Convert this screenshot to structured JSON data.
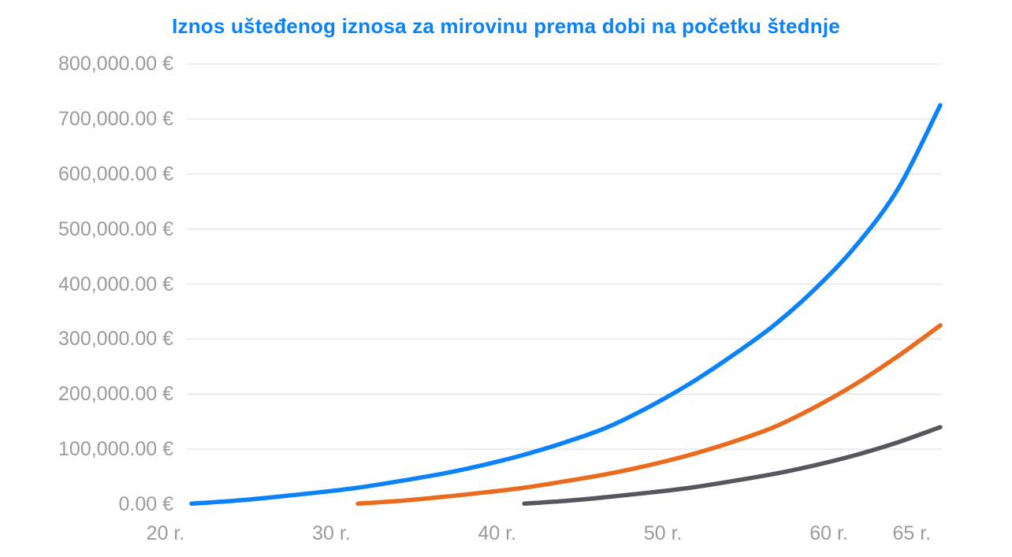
{
  "page": {
    "background_color": "#ffffff"
  },
  "chart_data": {
    "type": "line",
    "title": "Iznos ušteđenog iznosa za mirovinu prema dobi na početku štednje",
    "title_color": "#0b82f8",
    "xlabel": "",
    "ylabel": "",
    "xlim": [
      20,
      65
    ],
    "ylim": [
      0,
      800000
    ],
    "grid": "horizontal gridlines only, no zero baseline, no vertical gridlines",
    "legend_position": "none",
    "axis_text_color": "#9b9b9b",
    "gridline_color": "#dcdcdc",
    "currency": "EUR",
    "x_unit": "r.",
    "y_tick_values": [
      0,
      100000,
      200000,
      300000,
      400000,
      500000,
      600000,
      700000,
      800000
    ],
    "y_tick_labels": [
      "0.00 €",
      "100,000.00 €",
      "200,000.00 €",
      "300,000.00 €",
      "400,000.00 €",
      "500,000.00 €",
      "600,000.00 €",
      "700,000.00 €",
      "800,000.00 €"
    ],
    "x_tick_values": [
      20,
      30,
      40,
      50,
      60,
      65
    ],
    "x_tick_labels": [
      "20 r.",
      "30 r.",
      "40 r.",
      "50 r.",
      "60 r.",
      "65 r."
    ],
    "series": [
      {
        "id": "start-age-20",
        "start_age": 20,
        "end_age": 65,
        "color": "#0b82f7",
        "ages": [
          20,
          22.5,
          25,
          27.5,
          30,
          32.5,
          35,
          37.5,
          40,
          42.5,
          45,
          47.5,
          50,
          52.5,
          55,
          57.5,
          60,
          62.5,
          65
        ],
        "values": [
          1000,
          6000,
          13000,
          21000,
          30000,
          42000,
          55000,
          71000,
          90000,
          113000,
          140000,
          177000,
          220000,
          270000,
          325000,
          392000,
          472000,
          575000,
          725000
        ]
      },
      {
        "id": "start-age-30",
        "start_age": 30,
        "end_age": 65,
        "color": "#ea6a1e",
        "ages": [
          30,
          32.5,
          35,
          37.5,
          40,
          42.5,
          45,
          47.5,
          50,
          52.5,
          55,
          57.5,
          60,
          62.5,
          65
        ],
        "values": [
          1000,
          6000,
          13000,
          21000,
          30000,
          42000,
          55000,
          71000,
          90000,
          113000,
          140000,
          177000,
          220000,
          270000,
          325000
        ]
      },
      {
        "id": "start-age-40",
        "start_age": 40,
        "end_age": 65,
        "color": "#56575e",
        "ages": [
          40,
          42.5,
          45,
          47.5,
          50,
          52.5,
          55,
          57.5,
          60,
          62.5,
          65
        ],
        "values": [
          1000,
          6000,
          13000,
          21000,
          30000,
          42000,
          55000,
          71000,
          90000,
          113000,
          140000
        ]
      }
    ]
  }
}
